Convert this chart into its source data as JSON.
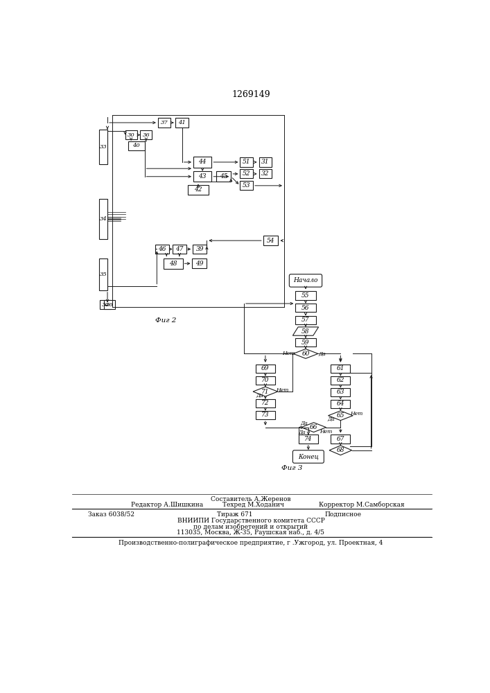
{
  "title": "1269149",
  "fig2_label": "Фиг 2",
  "fig3_label": "Фиг 3",
  "bg_color": "#ffffff",
  "box_color": "#ffffff",
  "line_color": "#1a1a1a"
}
